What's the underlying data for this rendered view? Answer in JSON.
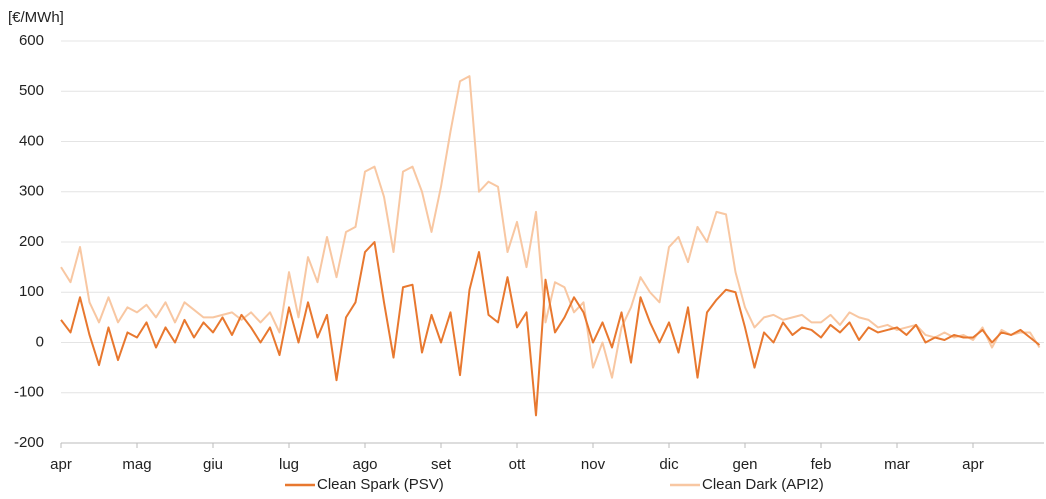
{
  "chart_data": {
    "type": "line",
    "y_label": "[€/MWh]",
    "categories": [
      "apr",
      null,
      null,
      null,
      null,
      null,
      null,
      null,
      "mag",
      null,
      null,
      null,
      null,
      null,
      null,
      null,
      "giu",
      null,
      null,
      null,
      null,
      null,
      null,
      null,
      "lug",
      null,
      null,
      null,
      null,
      null,
      null,
      null,
      "ago",
      null,
      null,
      null,
      null,
      null,
      null,
      null,
      "set",
      null,
      null,
      null,
      null,
      null,
      null,
      null,
      "ott",
      null,
      null,
      null,
      null,
      null,
      null,
      null,
      "nov",
      null,
      null,
      null,
      null,
      null,
      null,
      null,
      "dic",
      null,
      null,
      null,
      null,
      null,
      null,
      null,
      "gen",
      null,
      null,
      null,
      null,
      null,
      null,
      null,
      "feb",
      null,
      null,
      null,
      null,
      null,
      null,
      null,
      "mar",
      null,
      null,
      null,
      null,
      null,
      null,
      null,
      "apr",
      null,
      null,
      null,
      null,
      null,
      null,
      null
    ],
    "series": [
      {
        "name": "Clean Spark (PSV)",
        "color": "#e8782f",
        "values": [
          45,
          20,
          90,
          15,
          -45,
          30,
          -35,
          20,
          10,
          40,
          -10,
          30,
          0,
          45,
          10,
          40,
          20,
          50,
          15,
          55,
          30,
          0,
          30,
          -25,
          70,
          0,
          80,
          10,
          55,
          -75,
          50,
          80,
          180,
          200,
          80,
          -30,
          110,
          115,
          -20,
          55,
          0,
          60,
          -65,
          105,
          180,
          55,
          40,
          130,
          30,
          60,
          -145,
          125,
          20,
          50,
          90,
          60,
          0,
          40,
          -10,
          60,
          -40,
          90,
          40,
          0,
          40,
          -20,
          70,
          -70,
          60,
          85,
          105,
          100,
          30,
          -50,
          20,
          0,
          40,
          15,
          30,
          25,
          10,
          35,
          20,
          40,
          5,
          30,
          20,
          25,
          30,
          15,
          35,
          0,
          10,
          5,
          15,
          10,
          10,
          25,
          0,
          20,
          15,
          25,
          10,
          -5
        ]
      },
      {
        "name": "Clean Dark (API2)",
        "color": "#f8c7a2",
        "values": [
          150,
          120,
          190,
          80,
          40,
          90,
          40,
          70,
          60,
          75,
          50,
          80,
          40,
          80,
          65,
          50,
          50,
          55,
          60,
          45,
          60,
          40,
          60,
          20,
          140,
          50,
          170,
          120,
          210,
          130,
          220,
          230,
          340,
          350,
          290,
          180,
          340,
          350,
          300,
          220,
          310,
          420,
          520,
          530,
          300,
          320,
          310,
          180,
          240,
          150,
          260,
          40,
          120,
          110,
          60,
          80,
          -50,
          0,
          -70,
          30,
          70,
          130,
          100,
          80,
          190,
          210,
          160,
          230,
          200,
          260,
          255,
          140,
          70,
          30,
          50,
          55,
          45,
          50,
          55,
          40,
          40,
          55,
          35,
          60,
          50,
          45,
          30,
          35,
          25,
          30,
          35,
          15,
          10,
          20,
          10,
          15,
          5,
          30,
          -10,
          25,
          15,
          20,
          20,
          -10
        ]
      }
    ],
    "ylim": [
      -200,
      600
    ],
    "yticks": [
      -200,
      -100,
      0,
      100,
      200,
      300,
      400,
      500,
      600
    ],
    "grid": true,
    "legend": "bottom"
  }
}
